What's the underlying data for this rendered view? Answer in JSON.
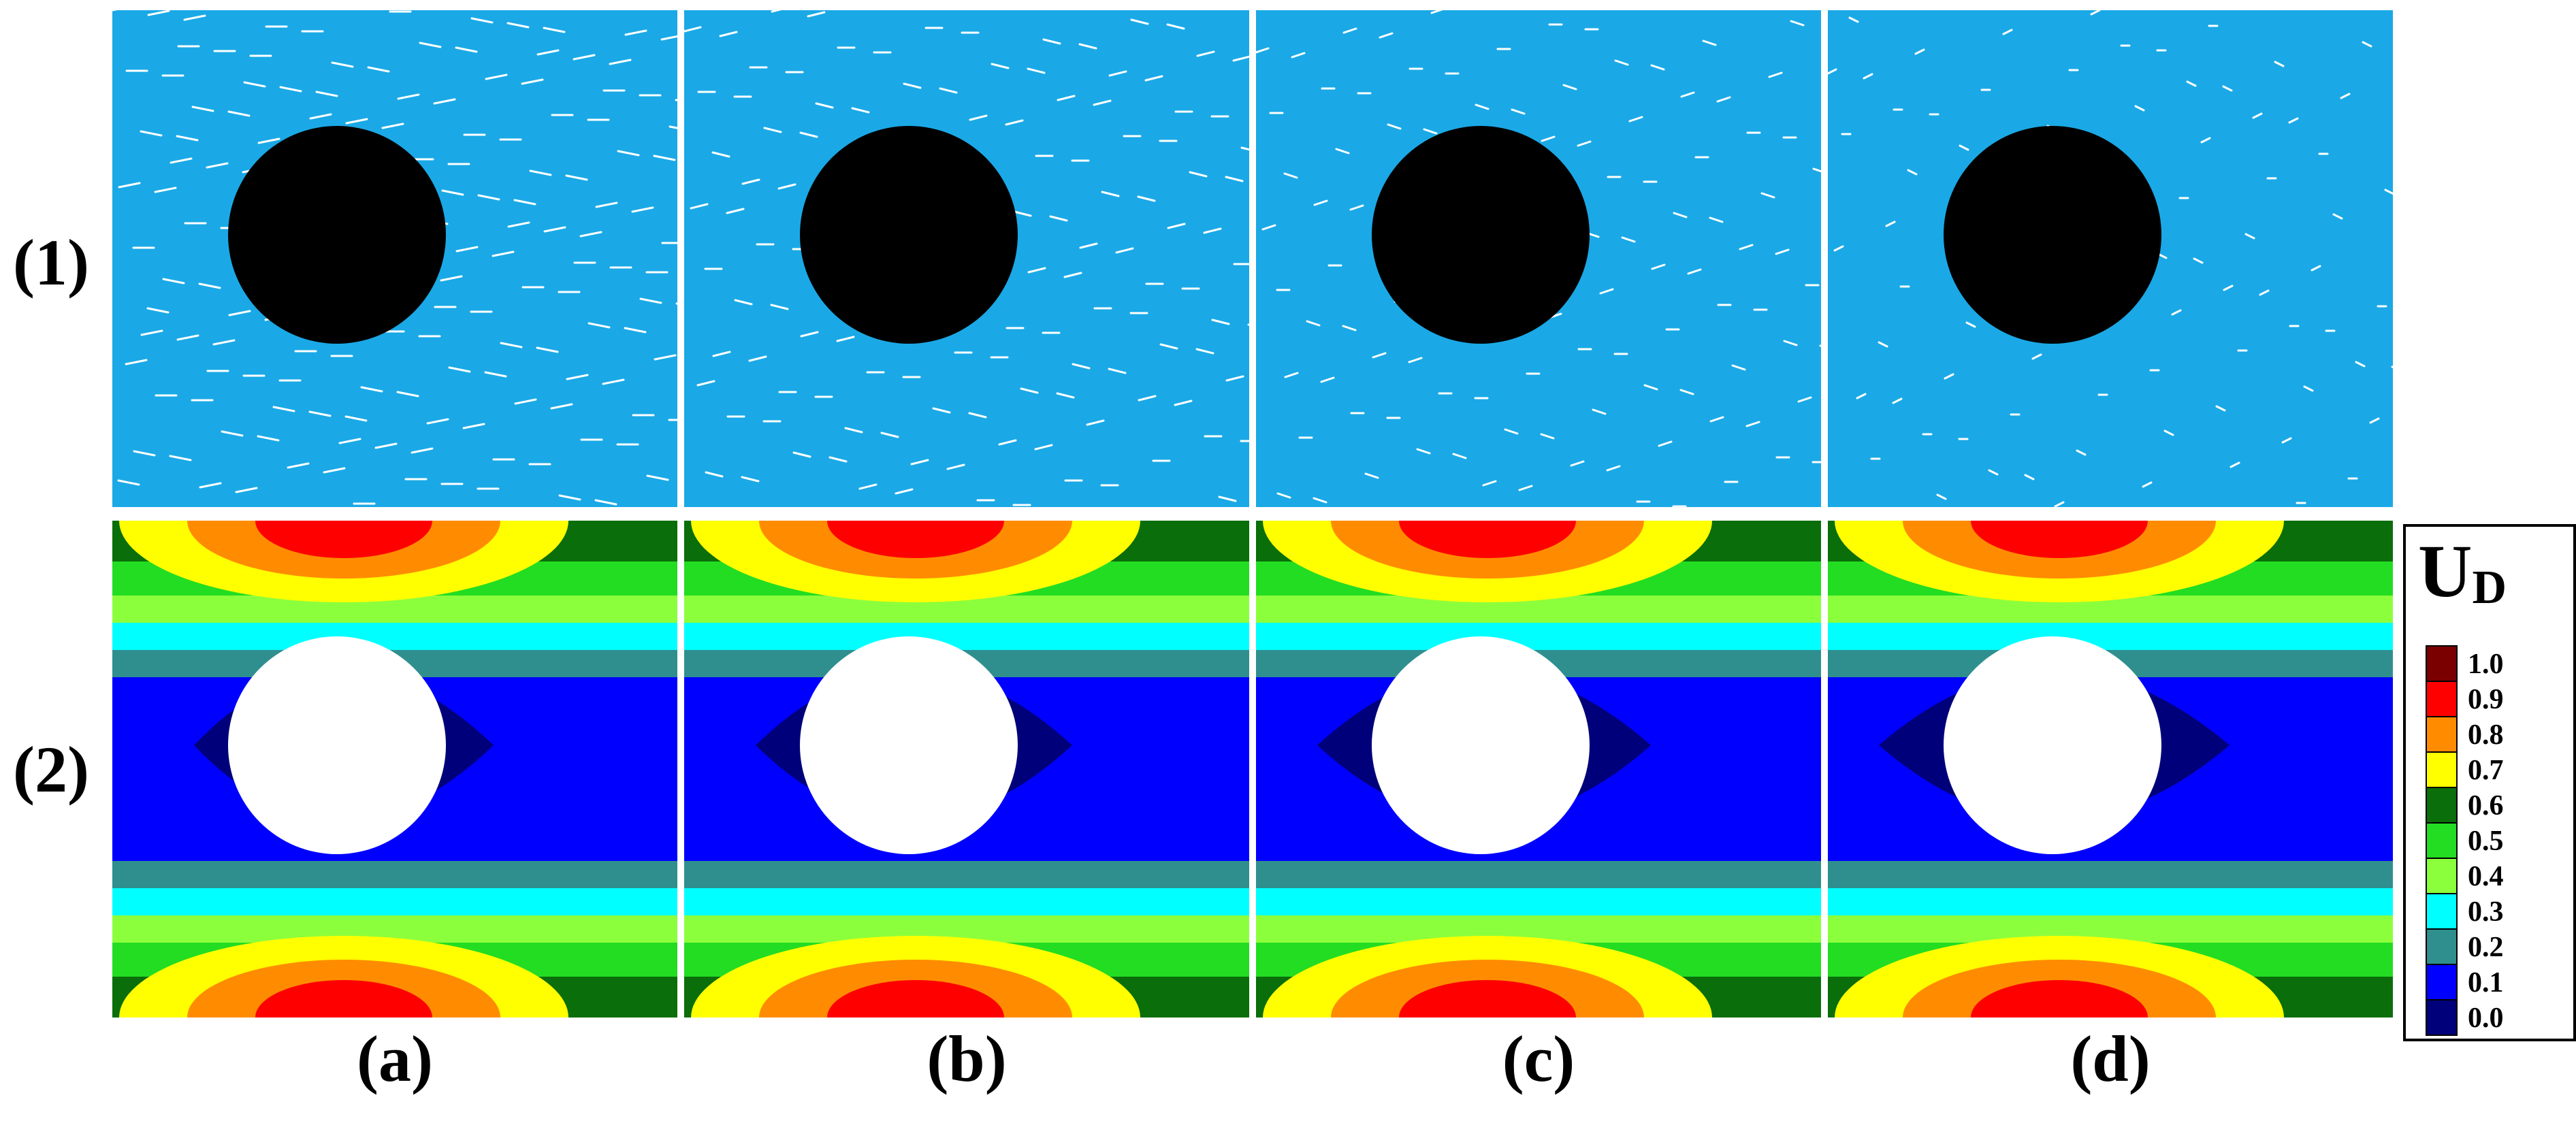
{
  "row_labels": [
    "(1)",
    "(2)"
  ],
  "column_labels": [
    "(a)",
    "(b)",
    "(c)",
    "(d)"
  ],
  "colorbar": {
    "title": "U",
    "title_sub": "D",
    "ticks": [
      "1.0",
      "0.9",
      "0.8",
      "0.7",
      "0.6",
      "0.5",
      "0.4",
      "0.3",
      "0.2",
      "0.1",
      "0.0"
    ],
    "colors": [
      "#7a0000",
      "#ff0000",
      "#ff8c00",
      "#ffff00",
      "#0a6e0a",
      "#22dd22",
      "#8cff3c",
      "#00ffff",
      "#2f8f8f",
      "#0000ff",
      "#00007a"
    ]
  },
  "colors": {
    "particle_blue": "#1aa9e6",
    "obstacle": "#000000",
    "background": "#ffffff"
  }
}
